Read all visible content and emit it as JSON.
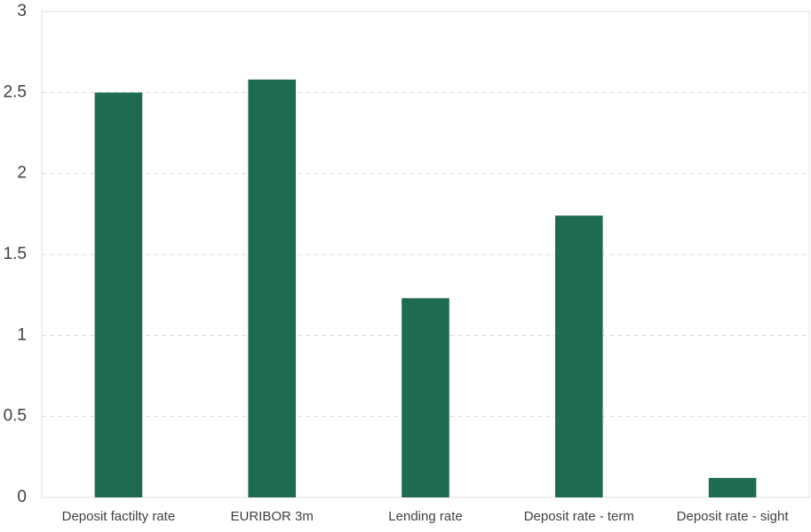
{
  "chart_data": {
    "type": "bar",
    "categories": [
      "Deposit factilty rate",
      "EURIBOR 3m",
      "Lending rate",
      "Deposit rate - term",
      "Deposit rate - sight"
    ],
    "values": [
      2.5,
      2.58,
      1.23,
      1.74,
      0.12
    ],
    "color": "#1f6b52",
    "ylim": [
      0,
      3
    ],
    "yticks": [
      0,
      0.5,
      1,
      1.5,
      2,
      2.5,
      3
    ],
    "grid": true
  }
}
